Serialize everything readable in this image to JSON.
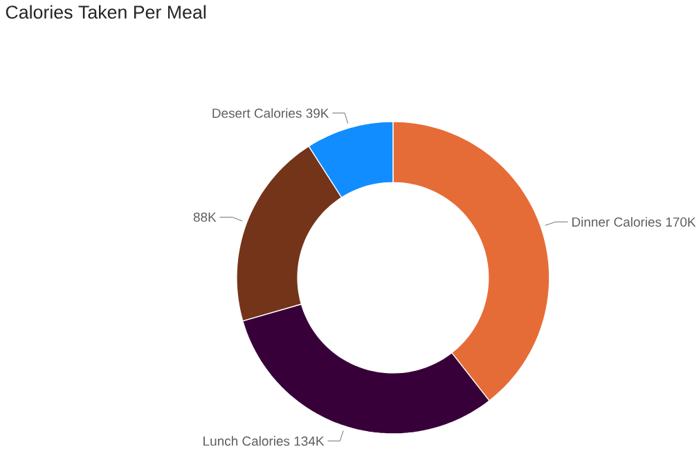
{
  "chart_data": {
    "type": "donut",
    "title": "Calories Taken Per Meal",
    "categories": [
      "Dinner Calories",
      "Lunch Calories",
      null,
      "Desert Calories"
    ],
    "values": [
      170,
      134,
      88,
      39
    ],
    "value_labels": [
      "170K",
      "134K",
      "88K",
      "39K"
    ],
    "colors": [
      "#e66c37",
      "#380038",
      "#743419",
      "#118dff"
    ]
  }
}
